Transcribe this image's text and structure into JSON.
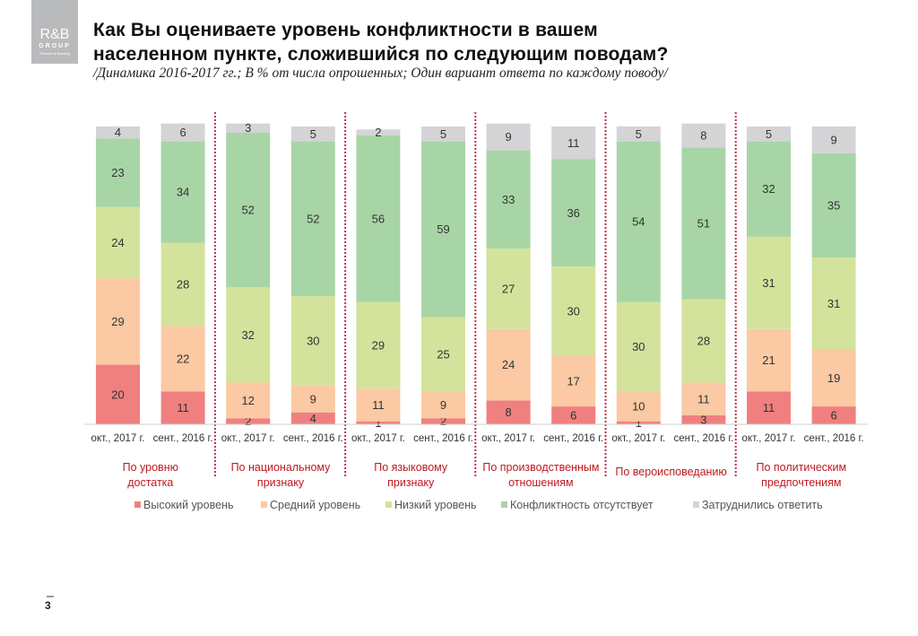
{
  "logo": {
    "line1": "R&B",
    "line2": "GROUP",
    "line3": "Research & Branding"
  },
  "title_line1": "Как Вы оцениваете уровень конфликтности в вашем",
  "title_line2": "населенном пункте, сложившийся по следующим поводам?",
  "subtitle": "/Динамика 2016-2017 гг.; В % от числа опрошенных; Один вариант ответа по каждому поводу/",
  "page_number": "3",
  "chart_data": {
    "type": "bar",
    "stacked": true,
    "title": "Как Вы оцениваете уровень конфликтности в вашем населенном пункте, сложившийся по следующим поводам?",
    "xlabel": "",
    "ylabel": "",
    "ylim": [
      0,
      100
    ],
    "grid": false,
    "legend_position": "bottom",
    "groups": [
      "По уровню достатка",
      "По национальному признаку",
      "По языковому признаку",
      "По производственным отношениям",
      "По вероисповеданию",
      "По политическим предпочтениям"
    ],
    "group_lines": [
      [
        "По уровню",
        "достатка"
      ],
      [
        "По национальному",
        "признаку"
      ],
      [
        "По языковому",
        "признаку"
      ],
      [
        "По производственным",
        "отношениям"
      ],
      [
        "По вероисповеданию"
      ],
      [
        "По политическим",
        "предпочтениям"
      ]
    ],
    "categories": [
      "окт., 2017 г.",
      "сент., 2016 г.",
      "окт., 2017 г.",
      "сент., 2016 г.",
      "окт., 2017 г.",
      "сент., 2016 г.",
      "окт., 2017 г.",
      "сент., 2016 г.",
      "окт., 2017 г.",
      "сент., 2016 г.",
      "окт., 2017 г.",
      "сент., 2016 г."
    ],
    "series": [
      {
        "name": "Высокий уровень",
        "color": "#f08080",
        "values": [
          20,
          11,
          2,
          4,
          1,
          2,
          8,
          6,
          1,
          3,
          11,
          6
        ]
      },
      {
        "name": "Средний уровень",
        "color": "#fbc9a3",
        "values": [
          29,
          22,
          12,
          9,
          11,
          9,
          24,
          17,
          10,
          11,
          21,
          19
        ]
      },
      {
        "name": "Низкий уровень",
        "color": "#d3e39c",
        "values": [
          24,
          28,
          32,
          30,
          29,
          25,
          27,
          30,
          30,
          28,
          31,
          31
        ]
      },
      {
        "name": "Конфликтность отсутствует",
        "color": "#a8d5a6",
        "values": [
          23,
          34,
          52,
          52,
          56,
          59,
          33,
          36,
          54,
          51,
          32,
          35
        ]
      },
      {
        "name": "Затруднились ответить",
        "color": "#d4d4d6",
        "values": [
          4,
          6,
          3,
          5,
          2,
          5,
          9,
          11,
          5,
          8,
          5,
          9
        ]
      }
    ]
  },
  "colors": {
    "group_label": "#c0191f",
    "divider": "#c0334a",
    "tick_text": "#333333",
    "value_text": "#333333"
  }
}
